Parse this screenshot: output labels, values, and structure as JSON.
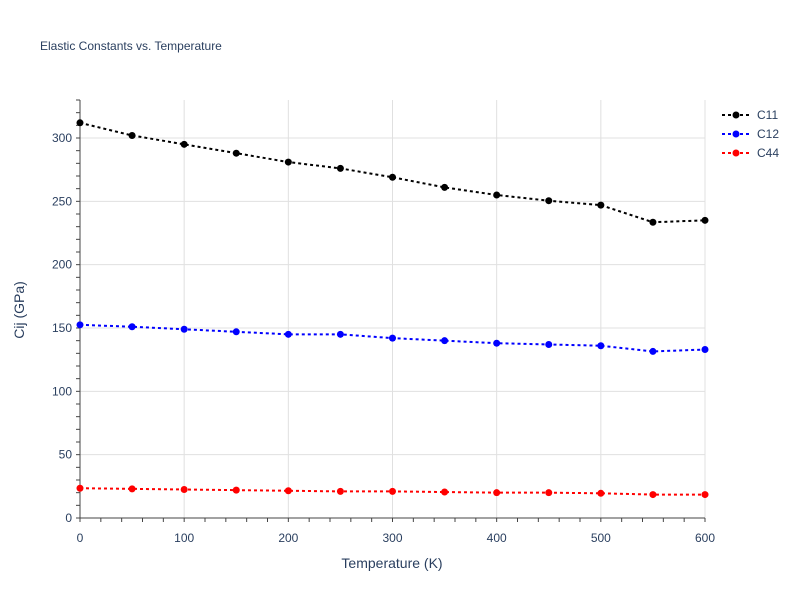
{
  "chart_data": {
    "type": "line",
    "title": "Elastic Constants vs. Temperature",
    "xlabel": "Temperature (K)",
    "ylabel": "Cij (GPa)",
    "xlim": [
      0,
      600
    ],
    "ylim": [
      0,
      330
    ],
    "x_ticks": [
      0,
      100,
      200,
      300,
      400,
      500,
      600
    ],
    "y_ticks": [
      0,
      50,
      100,
      150,
      200,
      250,
      300
    ],
    "grid": true,
    "legend_position": "top-right",
    "x": [
      0,
      50,
      100,
      150,
      200,
      250,
      300,
      350,
      400,
      450,
      500,
      550,
      600
    ],
    "series": [
      {
        "name": "C11",
        "color": "#000000",
        "values": [
          312,
          302,
          295,
          288,
          281,
          276,
          269,
          261,
          255,
          250.5,
          247,
          233.5,
          235
        ]
      },
      {
        "name": "C12",
        "color": "#0000ff",
        "values": [
          152.5,
          151,
          149,
          147,
          145,
          145,
          142,
          140,
          138,
          137,
          136,
          131.5,
          133
        ]
      },
      {
        "name": "C44",
        "color": "#ff0000",
        "values": [
          23.5,
          23,
          22.5,
          22,
          21.5,
          21,
          21,
          20.5,
          20,
          20,
          19.5,
          18.5,
          18.5
        ]
      }
    ]
  }
}
